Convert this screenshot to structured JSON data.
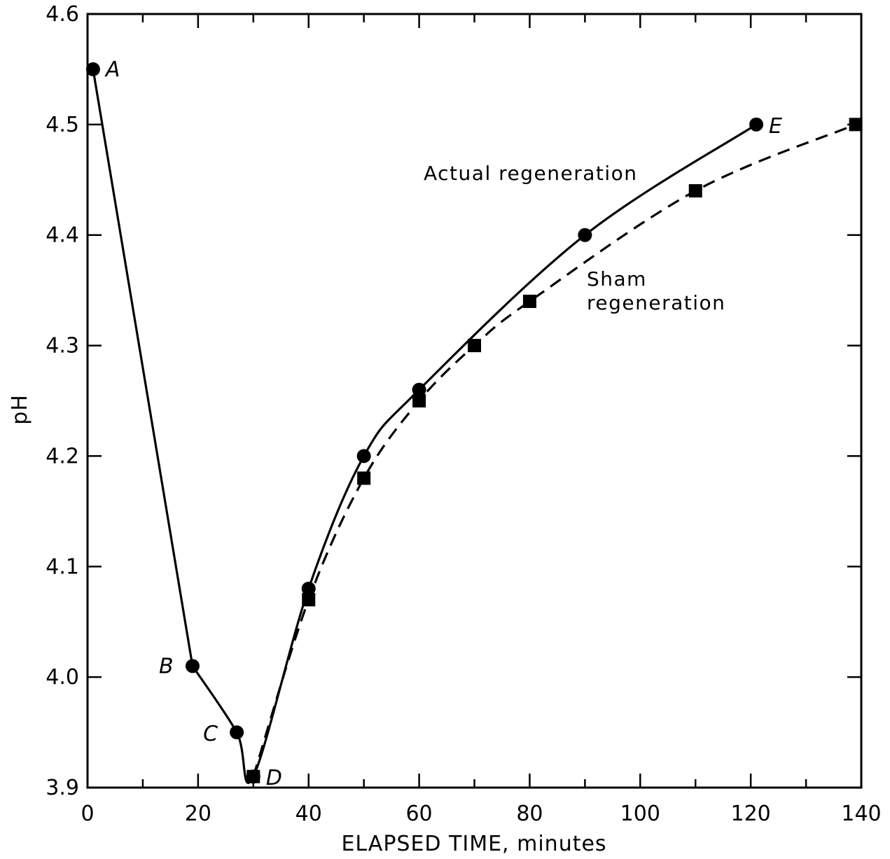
{
  "chart_data": {
    "type": "line",
    "title": "",
    "xlabel": "ELAPSED TIME, minutes",
    "ylabel": "pH",
    "xlim": [
      0,
      140
    ],
    "ylim": [
      3.9,
      4.6
    ],
    "x_ticks": [
      0,
      20,
      40,
      60,
      80,
      100,
      120,
      140
    ],
    "y_ticks": [
      3.9,
      4.0,
      4.1,
      4.2,
      4.3,
      4.4,
      4.5,
      4.6
    ],
    "x_tick_labels": [
      "0",
      "20",
      "40",
      "60",
      "80",
      "100",
      "120",
      "140"
    ],
    "y_tick_labels": [
      "3.9",
      "4.0",
      "4.1",
      "4.2",
      "4.3",
      "4.4",
      "4.5",
      "4.6"
    ],
    "grid": false,
    "series": [
      {
        "name": "Actual regeneration",
        "marker": "circle",
        "line_style": "solid",
        "points": [
          {
            "x": 1,
            "y": 4.55
          },
          {
            "x": 19,
            "y": 4.01
          },
          {
            "x": 27,
            "y": 3.95
          },
          {
            "x": 30,
            "y": 3.91
          },
          {
            "x": 40,
            "y": 4.08
          },
          {
            "x": 50,
            "y": 4.2
          },
          {
            "x": 60,
            "y": 4.26
          },
          {
            "x": 90,
            "y": 4.4
          },
          {
            "x": 121,
            "y": 4.5
          }
        ]
      },
      {
        "name": "Sham regeneration",
        "marker": "square",
        "line_style": "dashed",
        "points": [
          {
            "x": 30,
            "y": 3.91
          },
          {
            "x": 40,
            "y": 4.07
          },
          {
            "x": 50,
            "y": 4.18
          },
          {
            "x": 60,
            "y": 4.25
          },
          {
            "x": 70,
            "y": 4.3
          },
          {
            "x": 80,
            "y": 4.34
          },
          {
            "x": 110,
            "y": 4.44
          },
          {
            "x": 139,
            "y": 4.5
          }
        ]
      }
    ],
    "point_labels": [
      {
        "text": "A",
        "x": 1,
        "y": 4.55
      },
      {
        "text": "B",
        "x": 19,
        "y": 4.01
      },
      {
        "text": "C",
        "x": 27,
        "y": 3.95
      },
      {
        "text": "D",
        "x": 30,
        "y": 3.91
      },
      {
        "text": "E",
        "x": 121,
        "y": 4.5
      }
    ],
    "series_annotations": [
      {
        "series": 0,
        "lines": [
          "Actual regeneration"
        ]
      },
      {
        "series": 1,
        "lines": [
          "Sham",
          "regeneration"
        ]
      }
    ]
  }
}
